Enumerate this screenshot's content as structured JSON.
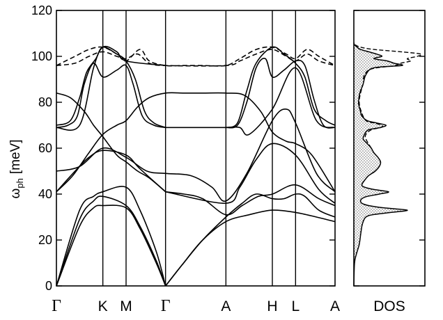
{
  "chart_data": [
    {
      "type": "line",
      "title": "",
      "ylabel": "ωph [meV]",
      "ylabel_main": "ω",
      "ylabel_sub": "ph",
      "ylabel_unit": "[meV]",
      "ylim": [
        0,
        120
      ],
      "yticks": [
        0,
        20,
        40,
        60,
        80,
        100,
        120
      ],
      "grid": false,
      "legend": "none",
      "kpath": [
        {
          "label": "Γ",
          "x": 0
        },
        {
          "label": "K",
          "x": 2
        },
        {
          "label": "M",
          "x": 3
        },
        {
          "label": "Γ",
          "x": 4.7
        },
        {
          "label": "A",
          "x": 7.3
        },
        {
          "label": "H",
          "x": 9.3
        },
        {
          "label": "L",
          "x": 10.3
        },
        {
          "label": "A",
          "x": 12
        }
      ],
      "xlim": [
        0,
        12
      ],
      "series": [
        {
          "style": "solid",
          "points": [
            [
              0,
              0
            ],
            [
              1,
              26
            ],
            [
              1.6,
              34
            ],
            [
              2,
              35
            ],
            [
              3,
              34
            ],
            [
              3.6,
              25
            ],
            [
              4.3,
              10
            ],
            [
              4.7,
              0
            ]
          ]
        },
        {
          "style": "solid",
          "points": [
            [
              0,
              0
            ],
            [
              1,
              29
            ],
            [
              1.6,
              37
            ],
            [
              2,
              39
            ],
            [
              3,
              35
            ],
            [
              3.6,
              26
            ],
            [
              4.3,
              11
            ],
            [
              4.7,
              0
            ]
          ]
        },
        {
          "style": "solid",
          "points": [
            [
              0,
              0
            ],
            [
              1,
              33
            ],
            [
              1.6,
              39
            ],
            [
              2,
              41
            ],
            [
              3,
              43
            ],
            [
              3.6,
              33
            ],
            [
              4.3,
              15
            ],
            [
              4.7,
              0
            ]
          ]
        },
        {
          "style": "solid",
          "points": [
            [
              4.7,
              0
            ],
            [
              5.4,
              9
            ],
            [
              6.3,
              20
            ],
            [
              7.3,
              28
            ],
            [
              8.3,
              31
            ],
            [
              9.3,
              33
            ],
            [
              10.3,
              32
            ],
            [
              11.2,
              30
            ],
            [
              12,
              28
            ]
          ]
        },
        {
          "style": "solid",
          "points": [
            [
              4.7,
              0
            ],
            [
              5.4,
              9
            ],
            [
              6.3,
              20
            ],
            [
              7.3,
              30
            ],
            [
              8,
              36
            ],
            [
              8.6,
              40
            ],
            [
              9.3,
              38
            ],
            [
              9.8,
              38
            ],
            [
              10.3,
              40
            ],
            [
              10.7,
              39
            ],
            [
              11.3,
              33
            ],
            [
              12,
              30
            ]
          ]
        },
        {
          "style": "solid",
          "points": [
            [
              4.7,
              41
            ],
            [
              5.5,
              40
            ],
            [
              6.3,
              38
            ],
            [
              7.3,
              31
            ],
            [
              8,
              35
            ],
            [
              8.7,
              39
            ],
            [
              9.3,
              40
            ],
            [
              10.3,
              44
            ],
            [
              11.3,
              38
            ],
            [
              12,
              35
            ]
          ]
        },
        {
          "style": "solid",
          "points": [
            [
              0,
              41
            ],
            [
              0.8,
              50
            ],
            [
              1.4,
              56
            ],
            [
              2,
              59
            ],
            [
              3,
              57
            ],
            [
              3.6,
              51
            ],
            [
              4.7,
              41
            ]
          ]
        },
        {
          "style": "solid",
          "points": [
            [
              4.7,
              41
            ],
            [
              7.3,
              36
            ],
            [
              7.9,
              43
            ],
            [
              8.6,
              55
            ],
            [
              9.3,
              62
            ],
            [
              10.3,
              57
            ],
            [
              11.3,
              42
            ],
            [
              12,
              36
            ]
          ]
        },
        {
          "style": "solid",
          "points": [
            [
              0,
              50
            ],
            [
              1,
              52
            ],
            [
              2,
              60
            ],
            [
              3,
              56
            ],
            [
              3.9,
              50
            ],
            [
              4.7,
              49
            ],
            [
              5.8,
              48
            ],
            [
              6.7,
              43
            ],
            [
              7.3,
              37
            ],
            [
              8.2,
              49
            ],
            [
              9.3,
              72
            ],
            [
              9.9,
              77
            ],
            [
              10.3,
              71
            ],
            [
              11.2,
              49
            ],
            [
              12,
              41
            ]
          ]
        },
        {
          "style": "solid",
          "points": [
            [
              0,
              41
            ],
            [
              0.7,
              48
            ],
            [
              1.4,
              58
            ],
            [
              2,
              66
            ],
            [
              2.6,
              70
            ],
            [
              3,
              72
            ],
            [
              3.5,
              78
            ],
            [
              4,
              82
            ],
            [
              4.7,
              84
            ],
            [
              5.5,
              84
            ],
            [
              6.3,
              84
            ],
            [
              7.3,
              84
            ],
            [
              8.1,
              83
            ],
            [
              8.8,
              76
            ],
            [
              9.3,
              67
            ],
            [
              9.9,
              63
            ],
            [
              10.3,
              62
            ],
            [
              11,
              57
            ],
            [
              12,
              41
            ]
          ]
        },
        {
          "style": "solid",
          "points": [
            [
              0,
              84
            ],
            [
              0.6,
              82
            ],
            [
              1.2,
              76
            ],
            [
              1.6,
              70
            ],
            [
              2,
              65
            ],
            [
              2.6,
              57
            ],
            [
              3,
              54
            ],
            [
              3.5,
              50
            ],
            [
              4,
              47
            ],
            [
              4.7,
              41
            ]
          ]
        },
        {
          "style": "solid",
          "points": [
            [
              4.7,
              69
            ],
            [
              5.5,
              69
            ],
            [
              6.3,
              69
            ],
            [
              7.3,
              69
            ],
            [
              7.9,
              69
            ],
            [
              8.3,
              66
            ],
            [
              9.3,
              77
            ],
            [
              10.3,
              95
            ],
            [
              11.2,
              72
            ],
            [
              12,
              69
            ]
          ]
        },
        {
          "style": "solid",
          "points": [
            [
              0,
              69
            ],
            [
              0.5,
              70
            ],
            [
              0.9,
              74
            ],
            [
              1.2,
              88
            ],
            [
              1.6,
              97
            ],
            [
              2,
              91
            ],
            [
              2.6,
              94
            ],
            [
              3,
              96
            ],
            [
              3.3,
              88
            ],
            [
              3.7,
              74
            ],
            [
              4.2,
              70
            ],
            [
              4.7,
              69
            ]
          ]
        },
        {
          "style": "solid",
          "points": [
            [
              0,
              70
            ],
            [
              0.6,
              72
            ],
            [
              1,
              82
            ],
            [
              1.3,
              93
            ],
            [
              1.7,
              99
            ],
            [
              2,
              104
            ],
            [
              2.6,
              101
            ],
            [
              3,
              98
            ],
            [
              3.4,
              90
            ],
            [
              3.8,
              76
            ],
            [
              4.2,
              71
            ],
            [
              4.7,
              69
            ]
          ]
        },
        {
          "style": "solid",
          "points": [
            [
              7.3,
              69
            ],
            [
              7.8,
              71
            ],
            [
              8.2,
              85
            ],
            [
              8.6,
              97
            ],
            [
              9.3,
              104
            ],
            [
              9.8,
              101
            ],
            [
              10.3,
              97
            ],
            [
              10.7,
              91
            ],
            [
              11.1,
              77
            ],
            [
              11.6,
              72
            ],
            [
              12,
              70
            ]
          ]
        },
        {
          "style": "solid",
          "points": [
            [
              7.3,
              69
            ],
            [
              7.8,
              70
            ],
            [
              8.2,
              80
            ],
            [
              8.6,
              95
            ],
            [
              9,
              99
            ],
            [
              9.3,
              91
            ],
            [
              9.8,
              94
            ],
            [
              10.3,
              98
            ],
            [
              10.7,
              96
            ],
            [
              11.1,
              81
            ],
            [
              11.5,
              70
            ],
            [
              12,
              69
            ]
          ]
        },
        {
          "style": "solid",
          "points": [
            [
              0,
              69
            ],
            [
              1,
              70
            ],
            [
              1.6,
              95
            ],
            [
              2,
              104
            ],
            [
              2.6,
              102
            ],
            [
              3,
              98
            ],
            [
              4.7,
              96
            ]
          ]
        },
        {
          "style": "dashed",
          "points": [
            [
              0,
              96
            ],
            [
              0.8,
              100
            ],
            [
              1.4,
              103
            ],
            [
              2,
              104
            ],
            [
              2.6,
              101
            ],
            [
              3,
              98
            ],
            [
              3.6,
              103
            ],
            [
              4,
              98
            ],
            [
              4.7,
              96
            ],
            [
              5.5,
              96
            ],
            [
              6.3,
              96
            ],
            [
              7.3,
              96
            ],
            [
              7.9,
              99
            ],
            [
              8.6,
              103
            ],
            [
              9.3,
              104
            ],
            [
              9.9,
              101
            ],
            [
              10.3,
              99
            ],
            [
              10.8,
              103
            ],
            [
              11.3,
              100
            ],
            [
              12,
              96
            ]
          ]
        },
        {
          "style": "dashed",
          "points": [
            [
              0,
              96
            ],
            [
              0.8,
              97
            ],
            [
              1.4,
              100
            ],
            [
              2,
              102
            ],
            [
              2.6,
              100
            ],
            [
              3,
              99
            ],
            [
              3.5,
              101
            ],
            [
              4,
              97
            ],
            [
              4.7,
              96
            ],
            [
              7.3,
              96
            ],
            [
              7.9,
              98
            ],
            [
              8.6,
              101
            ],
            [
              9.3,
              103
            ],
            [
              9.9,
              100
            ],
            [
              10.3,
              98
            ],
            [
              10.8,
              101
            ],
            [
              11.3,
              98
            ],
            [
              12,
              96
            ]
          ]
        }
      ]
    },
    {
      "type": "area",
      "title": "",
      "xlabel": "DOS",
      "ylim": [
        0,
        120
      ],
      "grid": false,
      "legend": "none",
      "series": [
        {
          "style": "solid-filled",
          "y": [
            0,
            10,
            14,
            18,
            22,
            26,
            28,
            30,
            31,
            32,
            33,
            34,
            35,
            36,
            37,
            38,
            39,
            40,
            41,
            42,
            43,
            44,
            46,
            48,
            50,
            52,
            54,
            56,
            58,
            60,
            62,
            64,
            66,
            68,
            69,
            70,
            71,
            72,
            74,
            76,
            78,
            80,
            84,
            88,
            92,
            95,
            96,
            97,
            98,
            99,
            100,
            101,
            102,
            103,
            104,
            105,
            106
          ],
          "dos": [
            0,
            0.01,
            0.04,
            0.08,
            0.1,
            0.12,
            0.14,
            0.18,
            0.28,
            0.55,
            0.8,
            0.45,
            0.22,
            0.12,
            0.1,
            0.12,
            0.2,
            0.38,
            0.52,
            0.3,
            0.16,
            0.12,
            0.16,
            0.22,
            0.32,
            0.38,
            0.4,
            0.36,
            0.3,
            0.26,
            0.2,
            0.14,
            0.16,
            0.22,
            0.4,
            0.48,
            0.34,
            0.2,
            0.12,
            0.1,
            0.08,
            0.07,
            0.09,
            0.14,
            0.18,
            0.3,
            0.72,
            0.6,
            0.5,
            0.3,
            0.42,
            0.34,
            0.22,
            0.1,
            0.05,
            0.01,
            0
          ]
        },
        {
          "style": "dashed",
          "y": [
            90,
            92,
            94,
            95,
            96,
            97,
            98,
            99,
            100,
            101,
            102,
            103,
            104,
            105
          ],
          "dos": [
            0.14,
            0.16,
            0.22,
            0.34,
            0.62,
            0.7,
            0.85,
            0.8,
            0.95,
            1.0,
            0.7,
            0.3,
            0.1,
            0.02
          ]
        },
        {
          "style": "dashed",
          "y": [
            60,
            64,
            66,
            68,
            69,
            70,
            71,
            72,
            76,
            80,
            84,
            88
          ],
          "dos": [
            0.26,
            0.18,
            0.18,
            0.26,
            0.4,
            0.42,
            0.3,
            0.18,
            0.11,
            0.08,
            0.1,
            0.14
          ]
        }
      ]
    }
  ]
}
